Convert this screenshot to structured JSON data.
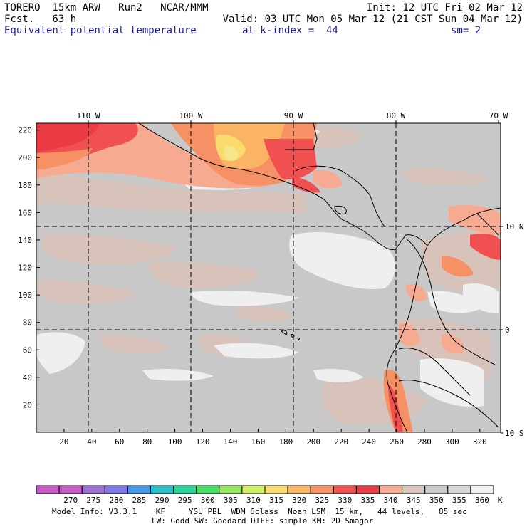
{
  "header": {
    "model": "TORERO  15km ARW   Run2   NCAR/MMM",
    "init": "Init: 12 UTC Fri 02 Mar 12",
    "fcst": "Fcst.   63 h",
    "valid": "Valid: 03 UTC Mon 05 Mar 12 (21 CST Sun 04 Mar 12)",
    "field": "Equivalent potential temperature",
    "level": "at k-index =  44",
    "smoothing": "sm= 2"
  },
  "map": {
    "x_ticks": [
      "20",
      "40",
      "60",
      "80",
      "100",
      "120",
      "140",
      "160",
      "180",
      "200",
      "220",
      "240",
      "260",
      "280",
      "300",
      "320"
    ],
    "y_ticks": [
      "20",
      "40",
      "60",
      "80",
      "100",
      "120",
      "140",
      "160",
      "180",
      "200",
      "220"
    ],
    "x_range": [
      0,
      335
    ],
    "y_range": [
      0,
      225
    ],
    "lon_labels": [
      {
        "text": "110 W",
        "value": 110
      },
      {
        "text": "100 W",
        "value": 100
      },
      {
        "text": "90 W",
        "value": 90
      },
      {
        "text": "80 W",
        "value": 80
      },
      {
        "text": "70 W",
        "value": 70
      }
    ],
    "lat_labels": [
      {
        "text": "10 N",
        "value": 10
      },
      {
        "text": "0",
        "value": 0
      },
      {
        "text": "10 S",
        "value": -10
      }
    ]
  },
  "colorbar": {
    "labels": [
      "270",
      "275",
      "280",
      "285",
      "290",
      "295",
      "300",
      "305",
      "310",
      "315",
      "320",
      "325",
      "330",
      "335",
      "340",
      "345",
      "350",
      "355",
      "360"
    ],
    "unit": "K",
    "colors": [
      "#c85ac8",
      "#9b6ed2",
      "#7a78e6",
      "#4696e6",
      "#28bec8",
      "#28d296",
      "#46dc64",
      "#96e65a",
      "#d2f064",
      "#fadc6e",
      "#fab464",
      "#f59164",
      "#f05050",
      "#eb3c46",
      "#f5aa91",
      "#d7c3b9",
      "#c8c8c8",
      "#d7d7d7",
      "#f0f0f0"
    ]
  },
  "footer": {
    "line1": "Model Info: V3.3.1    KF     YSU PBL  WDM 6class  Noah LSM  15 km,   44 levels,   85 sec",
    "line2": "LW: Godd SW: Goddard DIFF: simple KM: 2D Smagor"
  }
}
